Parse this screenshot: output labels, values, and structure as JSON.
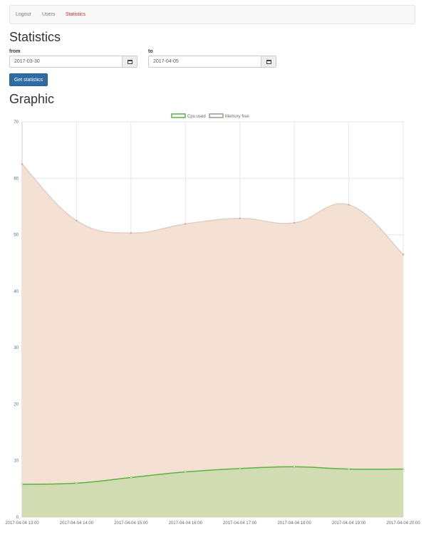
{
  "nav": {
    "logout": "Logout",
    "users": "Users",
    "statistics": "Statistics"
  },
  "page": {
    "title": "Statistics",
    "graphic_title": "Graphic"
  },
  "form": {
    "from_label": "from",
    "from_value": "2017-03-30",
    "to_label": "to",
    "to_value": "2017-04-05",
    "submit_label": "Get statistics"
  },
  "colors": {
    "nav_active": "#c9302c",
    "button": "#2e6da4",
    "cpu_line": "#5ab33e",
    "cpu_fill": "#d2dcb2",
    "memory_line": "#e0cfc4",
    "memory_fill": "#f5e1d3"
  },
  "chart_data": {
    "type": "line",
    "title": "",
    "xlabel": "",
    "ylabel": "",
    "ylim": [
      0,
      70
    ],
    "yticks": [
      0,
      10,
      20,
      30,
      40,
      50,
      60,
      70
    ],
    "grid": true,
    "legend_position": "top-center",
    "categories": [
      "2017-04-04 13:00",
      "2017-04-04 14:00",
      "2017-04-04 15:00",
      "2017-04-04 16:00",
      "2017-04-04 17:00",
      "2017-04-04 18:00",
      "2017-04-04 19:00",
      "2017-04-04 20:00"
    ],
    "series": [
      {
        "name": "Cpu used",
        "values": [
          5.8,
          6.0,
          7.0,
          8.0,
          8.6,
          8.9,
          8.5,
          8.5
        ]
      },
      {
        "name": "Memory free",
        "values": [
          62.5,
          52.5,
          50.3,
          51.9,
          52.9,
          52.1,
          55.3,
          46.5
        ]
      }
    ]
  }
}
